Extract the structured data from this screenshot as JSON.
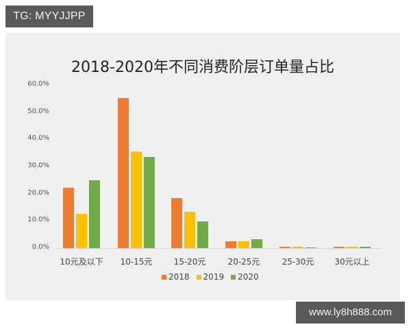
{
  "watermarks": {
    "top_left": "TG: MYYJJPP",
    "bottom_right": "www.ly8h888.com"
  },
  "colors": {
    "2018": "#ed7d31",
    "2019": "#ffc000",
    "2020": "#70ad47"
  },
  "chart_data": {
    "type": "bar",
    "title": "2018-2020年不同消费阶层订单量占比",
    "xlabel": "",
    "ylabel": "",
    "ylim": [
      0,
      60
    ],
    "yticks": [
      "0.0%",
      "10.0%",
      "20.0%",
      "30.0%",
      "40.0%",
      "50.0%",
      "60.0%"
    ],
    "grid": false,
    "legend_position": "bottom",
    "categories": [
      "10元及以下",
      "10-15元",
      "15-20元",
      "20-25元",
      "25-30元",
      "30元以上"
    ],
    "series": [
      {
        "name": "2018",
        "values": [
          22.2,
          55.2,
          18.4,
          2.5,
          0.4,
          0.4
        ]
      },
      {
        "name": "2019",
        "values": [
          12.6,
          35.5,
          13.4,
          2.6,
          0.4,
          0.5
        ]
      },
      {
        "name": "2020",
        "values": [
          24.9,
          33.5,
          9.8,
          3.3,
          0.3,
          0.5
        ]
      }
    ]
  }
}
